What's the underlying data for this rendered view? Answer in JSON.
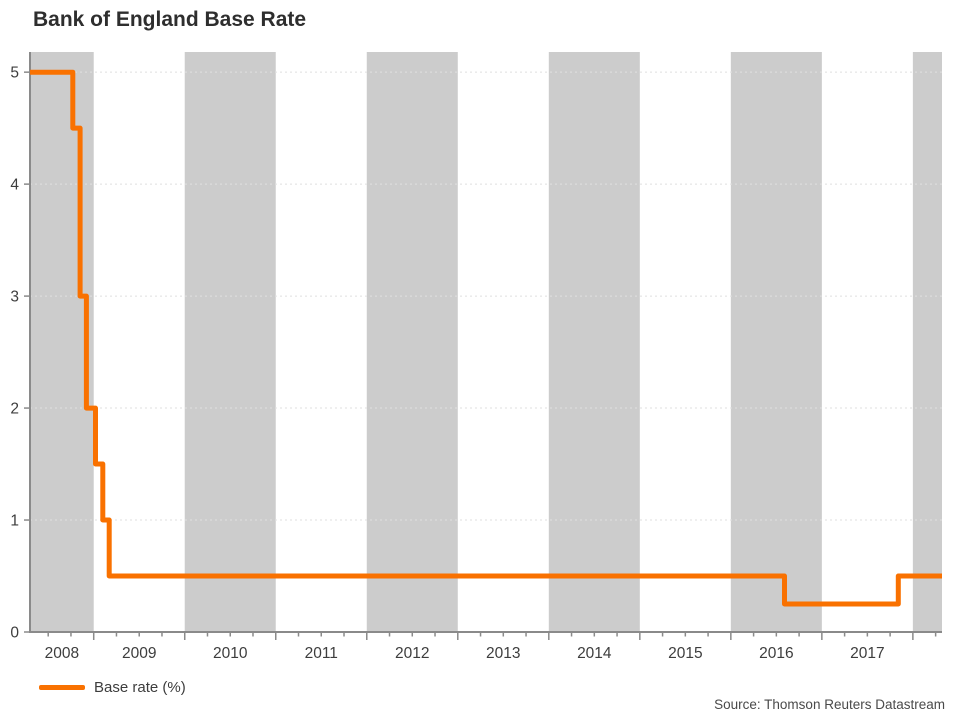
{
  "title": "Bank of England Base Rate",
  "legend": {
    "label": "Base rate (%)"
  },
  "source": "Source: Thomson Reuters Datastream",
  "chart_data": {
    "type": "line",
    "title": "Bank of England Base Rate",
    "xlabel": "",
    "ylabel": "",
    "x_range": [
      2008.3,
      2018.32
    ],
    "y_range": [
      0,
      5.18
    ],
    "y_ticks": [
      0,
      1,
      2,
      3,
      4,
      5
    ],
    "x_tick_years": [
      2008,
      2009,
      2010,
      2011,
      2012,
      2013,
      2014,
      2015,
      2016,
      2017
    ],
    "x_minor_tick_interval": 0.25,
    "grid": "dotted horizontal gridlines at integer values",
    "legend_position": "bottom-left",
    "shaded_years": [
      2008,
      2010,
      2012,
      2014,
      2016,
      2018
    ],
    "colors": {
      "line": "#f97100",
      "band": "#cccccc",
      "axis": "#8a8a8a",
      "grid": "#dfdfdf",
      "tick_label": "#3d3d3d",
      "title": "#2e2e2e"
    },
    "series": [
      {
        "name": "Base rate (%)",
        "color": "#f97100",
        "step_points": [
          [
            2008.3,
            5.0
          ],
          [
            2008.77,
            5.0
          ],
          [
            2008.77,
            4.5
          ],
          [
            2008.85,
            4.5
          ],
          [
            2008.85,
            3.0
          ],
          [
            2008.92,
            3.0
          ],
          [
            2008.92,
            2.0
          ],
          [
            2009.02,
            2.0
          ],
          [
            2009.02,
            1.5
          ],
          [
            2009.1,
            1.5
          ],
          [
            2009.1,
            1.0
          ],
          [
            2009.17,
            1.0
          ],
          [
            2009.17,
            0.5
          ],
          [
            2016.59,
            0.5
          ],
          [
            2016.59,
            0.25
          ],
          [
            2017.84,
            0.25
          ],
          [
            2017.84,
            0.5
          ],
          [
            2018.32,
            0.5
          ]
        ]
      }
    ]
  }
}
